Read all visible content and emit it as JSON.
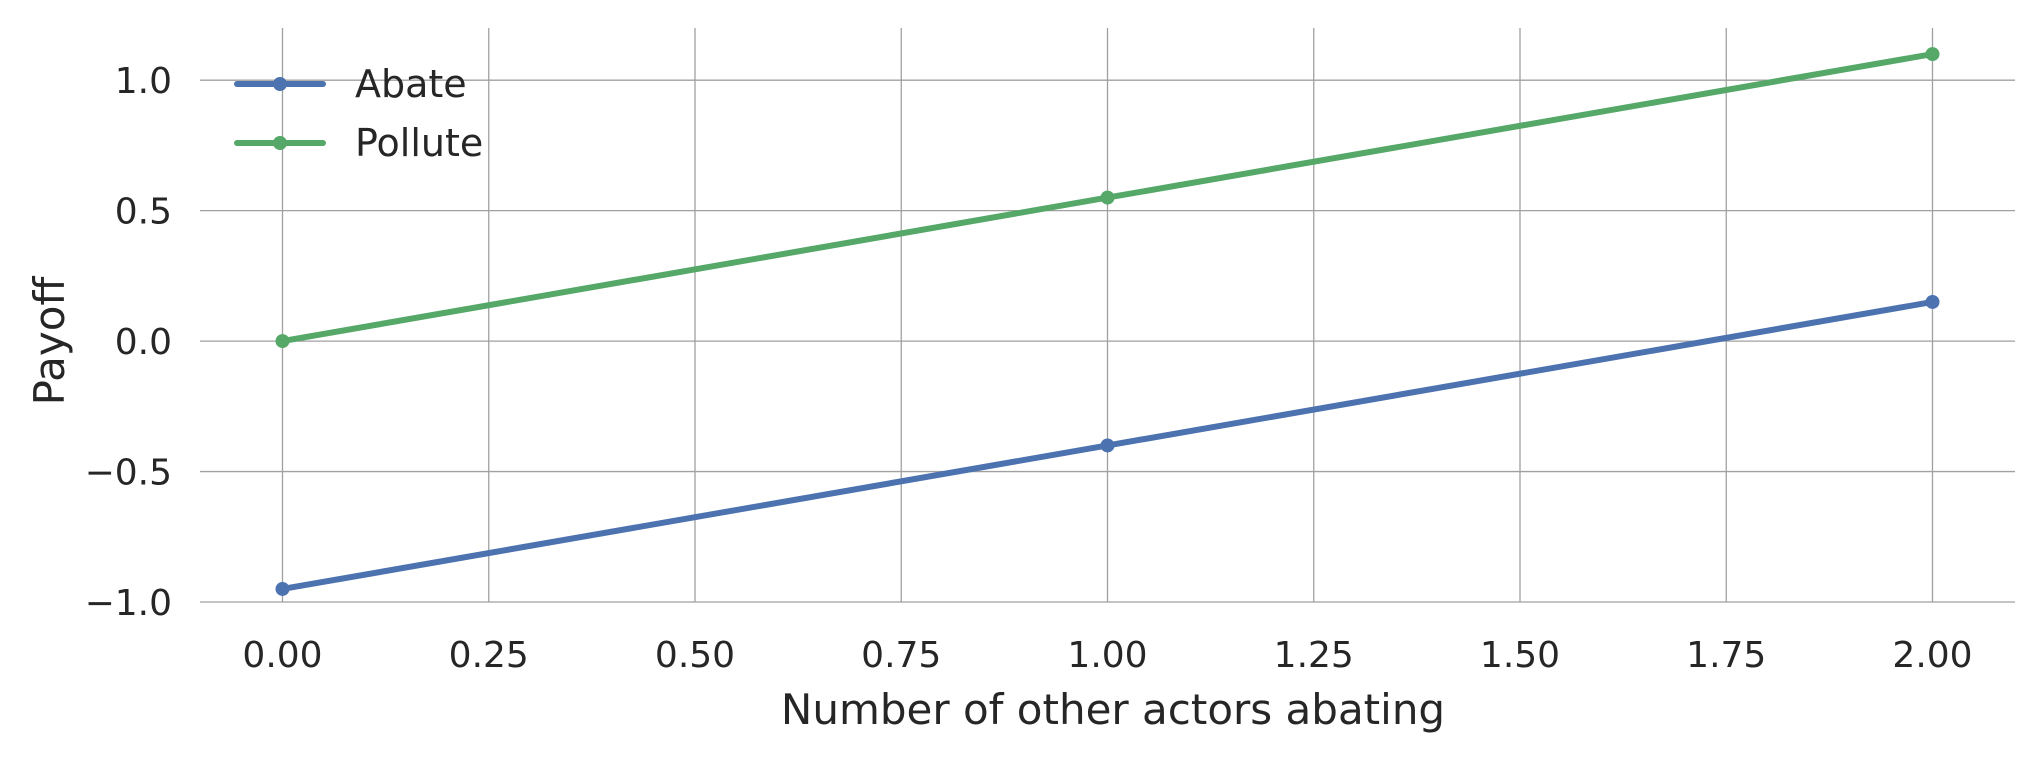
{
  "chart_data": {
    "type": "line",
    "x": [
      0,
      1,
      2
    ],
    "series": [
      {
        "name": "Abate",
        "values": [
          -0.95,
          -0.4,
          0.15
        ],
        "color": "#4c72b0"
      },
      {
        "name": "Pollute",
        "values": [
          0.0,
          0.55,
          1.1
        ],
        "color": "#55a868"
      }
    ],
    "xlabel": "Number of other actors abating",
    "ylabel": "Payoff",
    "xlim": [
      -0.1,
      2.1
    ],
    "ylim": [
      -1.0,
      1.2
    ],
    "xticks": [
      0,
      0.25,
      0.5,
      0.75,
      1.0,
      1.25,
      1.5,
      1.75,
      2.0
    ],
    "xtick_labels": [
      "0.00",
      "0.25",
      "0.50",
      "0.75",
      "1.00",
      "1.25",
      "1.50",
      "1.75",
      "2.00"
    ],
    "yticks": [
      -1.0,
      -0.5,
      0.0,
      0.5,
      1.0
    ],
    "ytick_labels": [
      "−1.0",
      "−0.5",
      "0.0",
      "0.5",
      "1.0"
    ],
    "grid": true,
    "legend_position": "top-left"
  }
}
